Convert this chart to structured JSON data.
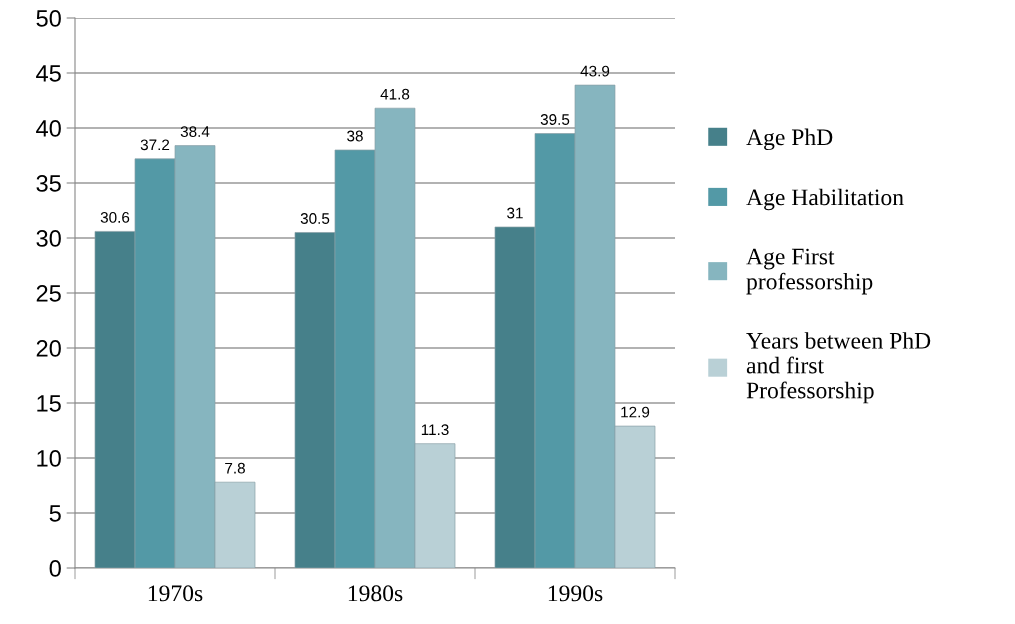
{
  "chart_data": {
    "type": "bar",
    "categories": [
      "1970s",
      "1980s",
      "1990s"
    ],
    "series": [
      {
        "name": "Age PhD",
        "color": "#46808a",
        "values": [
          30.6,
          30.5,
          31
        ]
      },
      {
        "name": "Age Habilitation",
        "color": "#5399a6",
        "values": [
          37.2,
          38,
          39.5
        ]
      },
      {
        "name": "Age First\nprofessorship",
        "color": "#86b5bf",
        "values": [
          38.4,
          41.8,
          43.9
        ]
      },
      {
        "name": "Years between PhD\nand first\nProfessorship",
        "color": "#b9d0d6",
        "values": [
          7.8,
          11.3,
          12.9
        ]
      }
    ],
    "ylim": [
      0,
      50
    ],
    "yticks": [
      0,
      5,
      10,
      15,
      20,
      25,
      30,
      35,
      40,
      45,
      50
    ],
    "grid": "y",
    "legend": "right",
    "data_labels": true
  }
}
